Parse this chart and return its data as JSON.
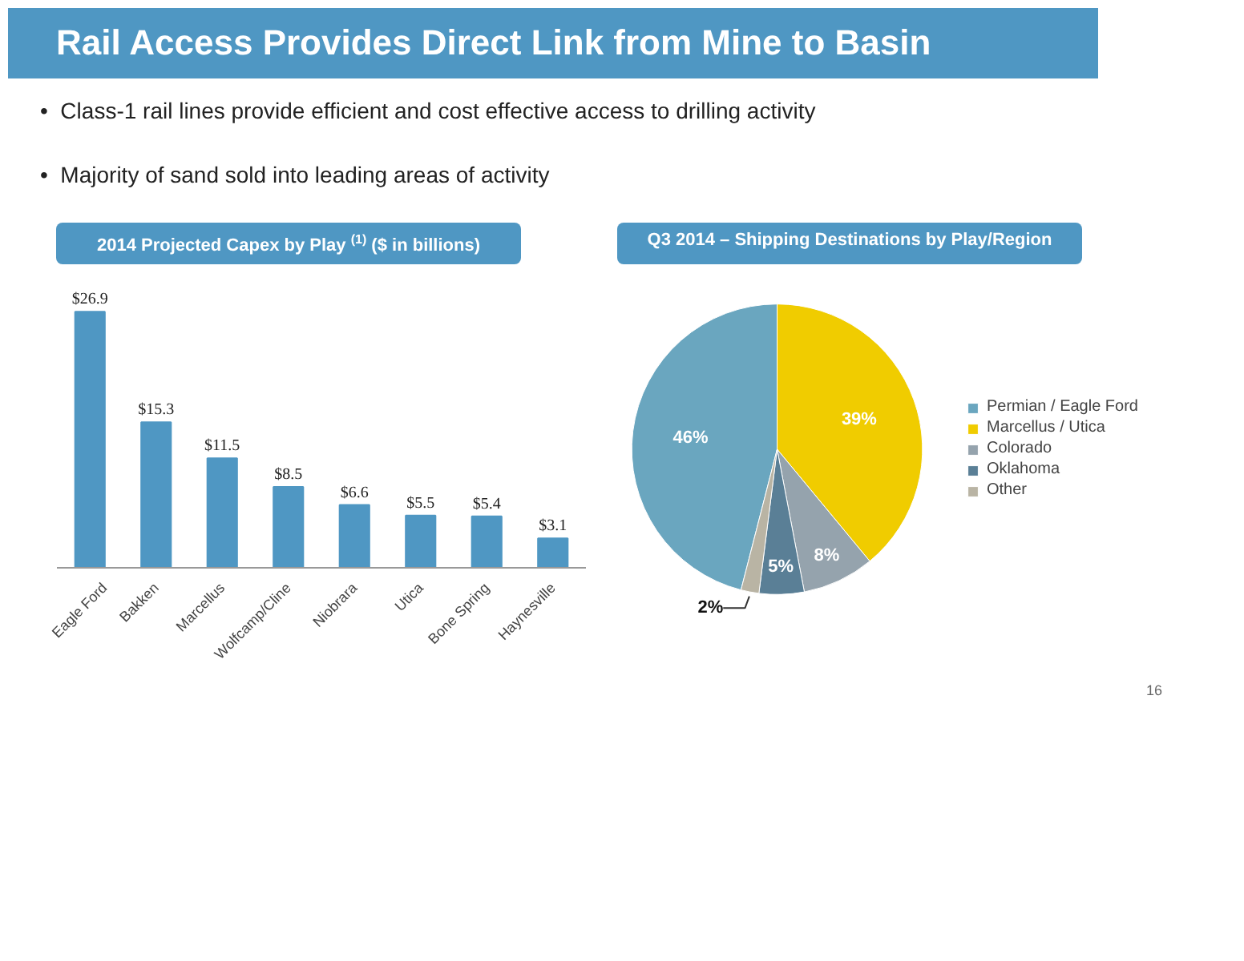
{
  "chart_data": [
    {
      "type": "bar",
      "title": "2014 Projected Capex by Play $^{(1)}$ ($ in billions)",
      "categories": [
        "Eagle Ford",
        "Bakken",
        "Marcellus",
        "Wolfcamp/Cline",
        "Niobrara",
        "Utica",
        "Bone Spring",
        "Haynesville"
      ],
      "values": [
        26.9,
        15.3,
        11.5,
        8.5,
        6.6,
        5.5,
        5.4,
        3.1
      ],
      "value_labels": [
        "$26.9",
        "$15.3",
        "$11.5",
        "$8.5",
        "$6.6",
        "$5.5",
        "$5.4",
        "$3.1"
      ],
      "color": "#4f97c3",
      "grid": false,
      "annotations": [
        "Rail Access Provides Direct Link from Mine to Basin",
        "•  Class-1 rail lines provide efficient and cost effective access to drilling activity",
        "•  Majority of sand sold into leading areas of activity"
      ]
    },
    {
      "type": "pie",
      "title": "Q3 2014 – Shipping Destinations by Play/Region",
      "categories": [
        "Permian / Eagle Ford",
        "Marcellus / Utica",
        "Colorado",
        "Oklahoma",
        "Other"
      ],
      "values": [
        46,
        39,
        8,
        5,
        2
      ],
      "value_labels": [
        "46%",
        "39%",
        "8%",
        "5%",
        "2%"
      ],
      "colors": [
        "#6aa6bf",
        "#f0cc00",
        "#95a3ad",
        "#5a7f96",
        "#b9b4a4"
      ],
      "legend": "right",
      "annotations": [
        "16"
      ]
    }
  ]
}
